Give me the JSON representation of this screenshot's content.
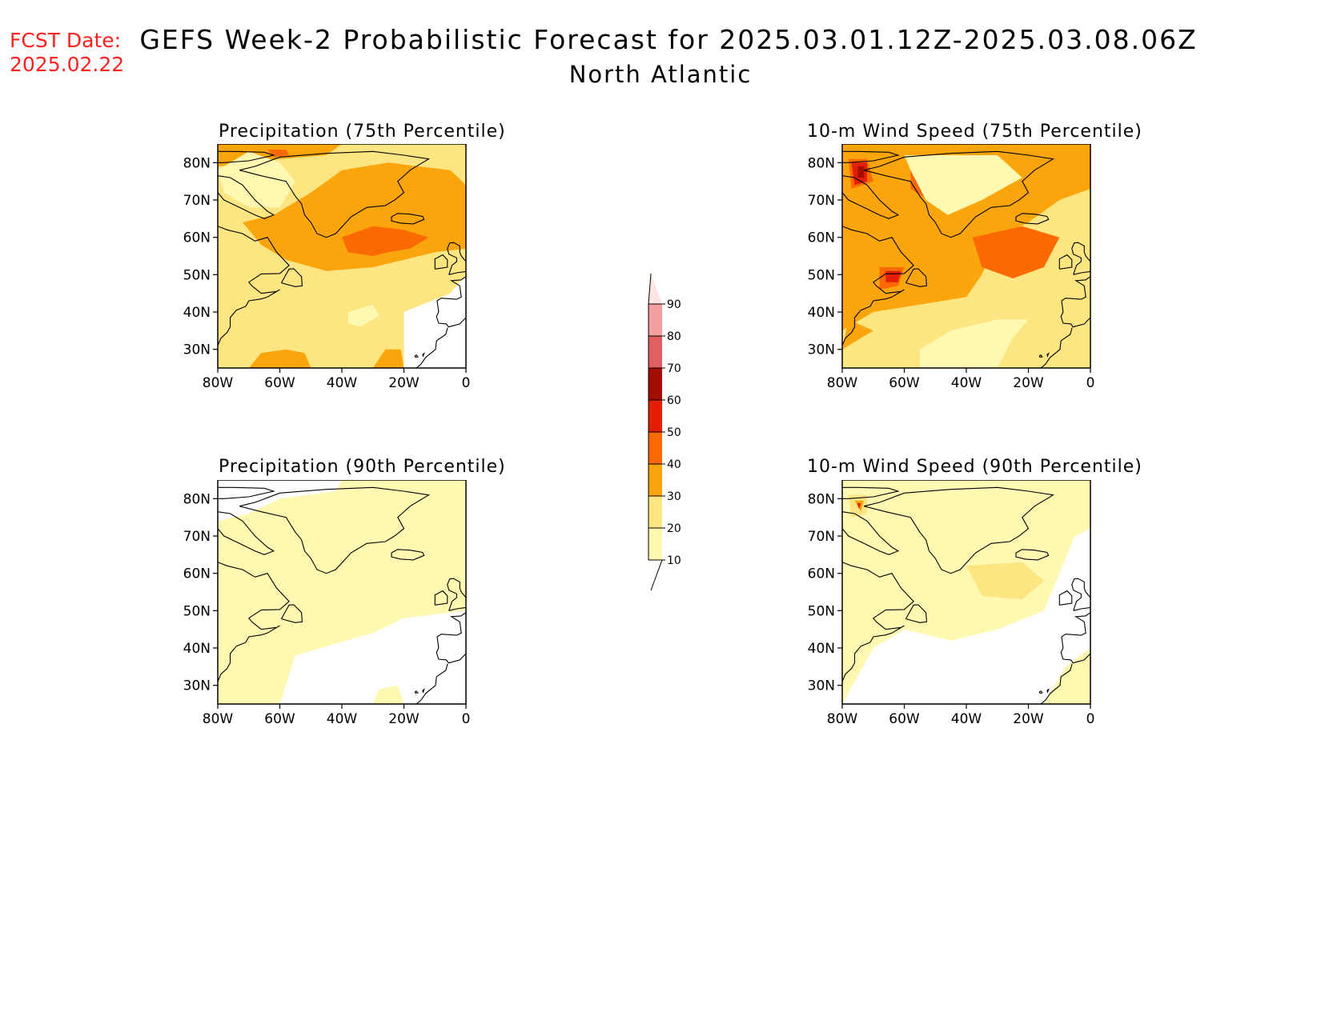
{
  "header": {
    "fcst_label": "FCST Date:",
    "fcst_date": "2025.02.22",
    "title": "GEFS Week-2 Probabilistic Forecast for 2025.03.01.12Z-2025.03.08.06Z",
    "region": "North Atlantic"
  },
  "colors": {
    "c10": "#fff8b0",
    "c20": "#fde582",
    "c30": "#fba50d",
    "c40": "#fb6a00",
    "c50": "#e41e00",
    "c60": "#a20d00",
    "c70": "#e06060",
    "c80": "#f4a0a0",
    "c90": "#ffe4e4"
  },
  "colorbar": {
    "ticks": [
      "10",
      "20",
      "30",
      "40",
      "50",
      "60",
      "70",
      "80",
      "90"
    ]
  },
  "axes": {
    "lat_labels": [
      "30N",
      "40N",
      "50N",
      "60N",
      "70N",
      "80N"
    ],
    "lon_labels": [
      "80W",
      "60W",
      "40W",
      "20W",
      "0"
    ],
    "lat_range": [
      25,
      85
    ],
    "lon_range": [
      -80,
      0
    ]
  },
  "panels": [
    {
      "id": "precip75",
      "title": "Precipitation (75th Percentile)",
      "fills": [
        {
          "level": "c20",
          "points": [
            [
              -80,
              25
            ],
            [
              -20,
              25
            ],
            [
              -20,
              40
            ],
            [
              -5,
              45
            ],
            [
              0,
              50
            ],
            [
              0,
              85
            ],
            [
              -80,
              85
            ]
          ]
        },
        {
          "level": "c30",
          "points": [
            [
              -72,
              64
            ],
            [
              -62,
              66
            ],
            [
              -50,
              72
            ],
            [
              -40,
              78
            ],
            [
              -25,
              80
            ],
            [
              -5,
              78
            ],
            [
              0,
              74
            ],
            [
              0,
              57
            ],
            [
              -10,
              56
            ],
            [
              -20,
              54
            ],
            [
              -30,
              52
            ],
            [
              -45,
              51
            ],
            [
              -58,
              54
            ],
            [
              -66,
              58
            ]
          ]
        },
        {
          "level": "c30",
          "points": [
            [
              -80,
              85
            ],
            [
              -40,
              85
            ],
            [
              -45,
              82
            ],
            [
              -60,
              81
            ],
            [
              -70,
              80
            ],
            [
              -80,
              79
            ]
          ]
        },
        {
          "level": "c30",
          "points": [
            [
              -70,
              25
            ],
            [
              -50,
              25
            ],
            [
              -52,
              29
            ],
            [
              -58,
              30
            ],
            [
              -66,
              29
            ]
          ]
        },
        {
          "level": "c30",
          "points": [
            [
              -30,
              25
            ],
            [
              -20,
              25
            ],
            [
              -21,
              30
            ],
            [
              -26,
              30
            ]
          ]
        },
        {
          "level": "c40",
          "points": [
            [
              -40,
              60
            ],
            [
              -30,
              63
            ],
            [
              -20,
              62
            ],
            [
              -12,
              60
            ],
            [
              -18,
              57
            ],
            [
              -25,
              56
            ],
            [
              -30,
              55
            ],
            [
              -38,
              56
            ]
          ]
        },
        {
          "level": "c40",
          "points": [
            [
              -64,
              83.5
            ],
            [
              -58,
              83.5
            ],
            [
              -57,
              82
            ],
            [
              -62,
              81.5
            ]
          ]
        },
        {
          "level": "c10",
          "points": [
            [
              -38,
              40
            ],
            [
              -30,
              42
            ],
            [
              -28,
              39
            ],
            [
              -34,
              36
            ],
            [
              -38,
              37
            ]
          ]
        },
        {
          "level": "c10",
          "points": [
            [
              -70,
              83
            ],
            [
              -60,
              80
            ],
            [
              -55,
              75
            ],
            [
              -60,
              68
            ],
            [
              -70,
              68
            ],
            [
              -78,
              72
            ],
            [
              -80,
              78
            ]
          ]
        }
      ]
    },
    {
      "id": "wind75",
      "title": "10-m Wind Speed (75th Percentile)",
      "fills": [
        {
          "level": "c20",
          "points": [
            [
              -80,
              25
            ],
            [
              0,
              25
            ],
            [
              0,
              85
            ],
            [
              -80,
              85
            ]
          ]
        },
        {
          "level": "c30",
          "points": [
            [
              -80,
              85
            ],
            [
              0,
              85
            ],
            [
              0,
              73
            ],
            [
              -10,
              70
            ],
            [
              -20,
              64
            ],
            [
              -30,
              60
            ],
            [
              -35,
              50
            ],
            [
              -40,
              44
            ],
            [
              -55,
              42
            ],
            [
              -70,
              40
            ],
            [
              -80,
              35
            ]
          ]
        },
        {
          "level": "c30",
          "points": [
            [
              -80,
              30
            ],
            [
              -70,
              35
            ],
            [
              -78,
              38
            ]
          ]
        },
        {
          "level": "c40",
          "points": [
            [
              -38,
              60
            ],
            [
              -22,
              63
            ],
            [
              -10,
              60
            ],
            [
              -15,
              52
            ],
            [
              -25,
              49
            ],
            [
              -35,
              52
            ]
          ]
        },
        {
          "level": "c40",
          "points": [
            [
              -58,
              80
            ],
            [
              -48,
              80
            ],
            [
              -46,
              76
            ],
            [
              -52,
              70
            ],
            [
              -58,
              73
            ]
          ]
        },
        {
          "level": "c40",
          "points": [
            [
              -78,
              81
            ],
            [
              -72,
              81
            ],
            [
              -70,
              75
            ],
            [
              -77,
              73
            ]
          ]
        },
        {
          "level": "c40",
          "points": [
            [
              -68,
              52
            ],
            [
              -60,
              52
            ],
            [
              -62,
              47
            ],
            [
              -68,
              46
            ]
          ]
        },
        {
          "level": "c50",
          "points": [
            [
              -54,
              77
            ],
            [
              -49,
              77
            ],
            [
              -48,
              73
            ],
            [
              -53,
              72
            ]
          ]
        },
        {
          "level": "c50",
          "points": [
            [
              -77,
              80
            ],
            [
              -72,
              80
            ],
            [
              -72,
              75
            ],
            [
              -76,
              74
            ]
          ]
        },
        {
          "level": "c50",
          "points": [
            [
              -66,
              51
            ],
            [
              -61,
              51
            ],
            [
              -62,
              48
            ],
            [
              -66,
              48
            ]
          ]
        },
        {
          "level": "c60",
          "points": [
            [
              -75,
              79
            ],
            [
              -73,
              79
            ],
            [
              -73,
              76
            ],
            [
              -75,
              76
            ]
          ]
        },
        {
          "level": "c10",
          "points": [
            [
              -55,
              25
            ],
            [
              -30,
              25
            ],
            [
              -25,
              33
            ],
            [
              -20,
              38
            ],
            [
              -30,
              38
            ],
            [
              -45,
              35
            ],
            [
              -55,
              30
            ]
          ]
        },
        {
          "level": "c10",
          "points": [
            [
              -60,
              82
            ],
            [
              -30,
              82
            ],
            [
              -22,
              76
            ],
            [
              -35,
              70
            ],
            [
              -46,
              66
            ],
            [
              -53,
              70
            ],
            [
              -58,
              78
            ]
          ]
        }
      ]
    },
    {
      "id": "precip90",
      "title": "Precipitation (90th Percentile)",
      "fills": [
        {
          "level": "c10",
          "points": [
            [
              -80,
              25
            ],
            [
              -60,
              25
            ],
            [
              -55,
              38
            ],
            [
              -30,
              44
            ],
            [
              -20,
              48
            ],
            [
              0,
              50
            ],
            [
              0,
              85
            ],
            [
              -40,
              85
            ],
            [
              -42,
              82
            ],
            [
              -60,
              80
            ],
            [
              -70,
              76
            ],
            [
              -80,
              74
            ]
          ]
        },
        {
          "level": "c10",
          "points": [
            [
              -30,
              25
            ],
            [
              -20,
              25
            ],
            [
              -22,
              30
            ],
            [
              -28,
              29
            ]
          ]
        }
      ]
    },
    {
      "id": "wind90",
      "title": "10-m Wind Speed (90th Percentile)",
      "fills": [
        {
          "level": "c10",
          "points": [
            [
              -80,
              25
            ],
            [
              -70,
              40
            ],
            [
              -60,
              45
            ],
            [
              -45,
              42
            ],
            [
              -30,
              45
            ],
            [
              -15,
              50
            ],
            [
              -10,
              60
            ],
            [
              -5,
              70
            ],
            [
              0,
              72
            ],
            [
              0,
              85
            ],
            [
              -80,
              85
            ]
          ]
        },
        {
          "level": "c10",
          "points": [
            [
              -15,
              25
            ],
            [
              0,
              25
            ],
            [
              0,
              40
            ],
            [
              -8,
              35
            ]
          ]
        },
        {
          "level": "c20",
          "points": [
            [
              -40,
              62
            ],
            [
              -22,
              63
            ],
            [
              -15,
              58
            ],
            [
              -22,
              53
            ],
            [
              -35,
              54
            ]
          ]
        },
        {
          "level": "c20",
          "points": [
            [
              -78,
              81
            ],
            [
              -72,
              81
            ],
            [
              -72,
              76
            ],
            [
              -77,
              75
            ]
          ]
        },
        {
          "level": "c30",
          "points": [
            [
              -76,
              79.5
            ],
            [
              -73,
              79.5
            ],
            [
              -74,
              76.5
            ]
          ]
        },
        {
          "level": "c50",
          "points": [
            [
              -75.2,
              78.8
            ],
            [
              -74,
              78.8
            ],
            [
              -74.5,
              77.2
            ]
          ]
        }
      ]
    }
  ]
}
